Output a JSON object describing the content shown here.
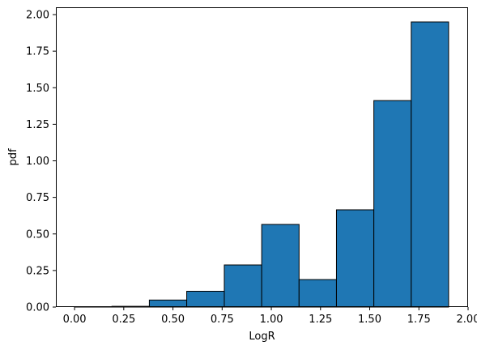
{
  "chart_data": {
    "type": "bar",
    "variant": "histogram",
    "xlabel": "LogR",
    "ylabel": "pdf",
    "xlim": [
      -0.095,
      2.0
    ],
    "ylim": [
      0.0,
      2.05
    ],
    "grid": false,
    "legend": "none",
    "bar_color": "#1f77b4",
    "edge_color": "#000000",
    "bins": [
      {
        "x0": 0.0,
        "x1": 0.19,
        "value": 0.0
      },
      {
        "x0": 0.19,
        "x1": 0.38,
        "value": 0.005
      },
      {
        "x0": 0.38,
        "x1": 0.57,
        "value": 0.048
      },
      {
        "x0": 0.57,
        "x1": 0.761,
        "value": 0.108
      },
      {
        "x0": 0.761,
        "x1": 0.951,
        "value": 0.288
      },
      {
        "x0": 0.951,
        "x1": 1.141,
        "value": 0.565
      },
      {
        "x0": 1.141,
        "x1": 1.331,
        "value": 0.188
      },
      {
        "x0": 1.331,
        "x1": 1.521,
        "value": 0.665
      },
      {
        "x0": 1.521,
        "x1": 1.711,
        "value": 1.412
      },
      {
        "x0": 1.711,
        "x1": 1.901,
        "value": 1.95
      }
    ],
    "xticks": [
      {
        "value": 0.0,
        "label": "0.00"
      },
      {
        "value": 0.25,
        "label": "0.25"
      },
      {
        "value": 0.5,
        "label": "0.50"
      },
      {
        "value": 0.75,
        "label": "0.75"
      },
      {
        "value": 1.0,
        "label": "1.00"
      },
      {
        "value": 1.25,
        "label": "1.25"
      },
      {
        "value": 1.5,
        "label": "1.50"
      },
      {
        "value": 1.75,
        "label": "1.75"
      },
      {
        "value": 2.0,
        "label": "2.00"
      }
    ],
    "yticks": [
      {
        "value": 0.0,
        "label": "0.00"
      },
      {
        "value": 0.25,
        "label": "0.25"
      },
      {
        "value": 0.5,
        "label": "0.50"
      },
      {
        "value": 0.75,
        "label": "0.75"
      },
      {
        "value": 1.0,
        "label": "1.00"
      },
      {
        "value": 1.25,
        "label": "1.25"
      },
      {
        "value": 1.5,
        "label": "1.50"
      },
      {
        "value": 1.75,
        "label": "1.75"
      },
      {
        "value": 2.0,
        "label": "2.00"
      }
    ]
  }
}
